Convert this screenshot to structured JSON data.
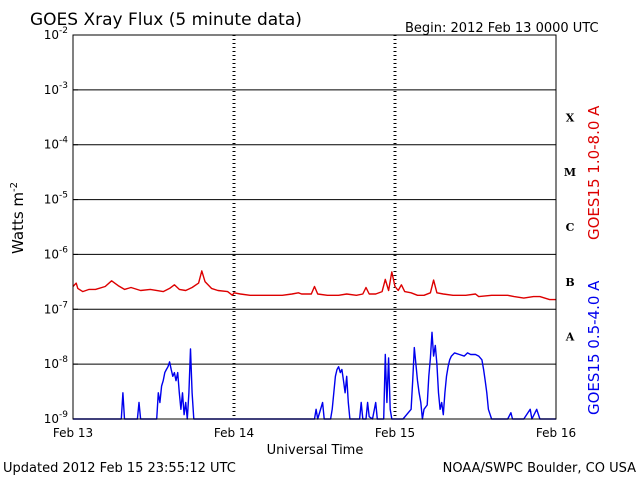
{
  "chart_data": {
    "type": "line",
    "title": "GOES Xray Flux (5 minute data)",
    "begin_label": "Begin:  2012 Feb 13 0000 UTC",
    "ylabel": "Watts m",
    "ylabel_exponent": "-2",
    "xlabel": "Universal Time",
    "y_scale": "log",
    "ylim": [
      1e-09,
      0.01
    ],
    "y_ticks": [
      {
        "value": 0.01,
        "mantissa": "10",
        "exponent": "-2"
      },
      {
        "value": 0.001,
        "mantissa": "10",
        "exponent": "-3"
      },
      {
        "value": 0.0001,
        "mantissa": "10",
        "exponent": "-4"
      },
      {
        "value": 1e-05,
        "mantissa": "10",
        "exponent": "-5"
      },
      {
        "value": 1e-06,
        "mantissa": "10",
        "exponent": "-6"
      },
      {
        "value": 1e-07,
        "mantissa": "10",
        "exponent": "-7"
      },
      {
        "value": 1e-08,
        "mantissa": "10",
        "exponent": "-8"
      },
      {
        "value": 1e-09,
        "mantissa": "10",
        "exponent": "-9"
      }
    ],
    "xlim_days": [
      0,
      3
    ],
    "x_tick_labels": [
      {
        "day": 0,
        "label": "Feb 13"
      },
      {
        "day": 1,
        "label": "Feb 14"
      },
      {
        "day": 2,
        "label": "Feb 15"
      },
      {
        "day": 3,
        "label": "Feb 16"
      }
    ],
    "flare_classes": [
      {
        "label": "X",
        "band": [
          0.0001,
          0.001
        ]
      },
      {
        "label": "M",
        "band": [
          1e-05,
          0.0001
        ]
      },
      {
        "label": "C",
        "band": [
          1e-06,
          1e-05
        ]
      },
      {
        "label": "B",
        "band": [
          1e-07,
          1e-06
        ]
      },
      {
        "label": "A",
        "band": [
          1e-08,
          1e-07
        ]
      }
    ],
    "grid": true,
    "series": [
      {
        "name": "GOES15 1.0-8.0 A",
        "color": "#dd0000",
        "points": [
          [
            0,
            2.6e-07
          ],
          [
            0.02,
            3e-07
          ],
          [
            0.03,
            2.4e-07
          ],
          [
            0.06,
            2.1e-07
          ],
          [
            0.1,
            2.3e-07
          ],
          [
            0.14,
            2.3e-07
          ],
          [
            0.2,
            2.6e-07
          ],
          [
            0.24,
            3.3e-07
          ],
          [
            0.28,
            2.7e-07
          ],
          [
            0.32,
            2.3e-07
          ],
          [
            0.36,
            2.5e-07
          ],
          [
            0.42,
            2.2e-07
          ],
          [
            0.48,
            2.3e-07
          ],
          [
            0.56,
            2.1e-07
          ],
          [
            0.6,
            2.4e-07
          ],
          [
            0.63,
            2.8e-07
          ],
          [
            0.66,
            2.3e-07
          ],
          [
            0.7,
            2.2e-07
          ],
          [
            0.74,
            2.5e-07
          ],
          [
            0.78,
            3e-07
          ],
          [
            0.8,
            5e-07
          ],
          [
            0.82,
            3.2e-07
          ],
          [
            0.86,
            2.4e-07
          ],
          [
            0.9,
            2.2e-07
          ],
          [
            0.96,
            2.1e-07
          ],
          [
            0.99,
            1.8e-07
          ],
          [
            1.0,
            2e-07
          ],
          [
            1.04,
            1.9e-07
          ],
          [
            1.1,
            1.8e-07
          ],
          [
            1.2,
            1.8e-07
          ],
          [
            1.3,
            1.8e-07
          ],
          [
            1.36,
            1.9e-07
          ],
          [
            1.4,
            2e-07
          ],
          [
            1.42,
            1.9e-07
          ],
          [
            1.48,
            1.9e-07
          ],
          [
            1.5,
            2.6e-07
          ],
          [
            1.52,
            1.9e-07
          ],
          [
            1.58,
            1.8e-07
          ],
          [
            1.65,
            1.8e-07
          ],
          [
            1.7,
            1.9e-07
          ],
          [
            1.76,
            1.8e-07
          ],
          [
            1.8,
            1.9e-07
          ],
          [
            1.82,
            2.5e-07
          ],
          [
            1.84,
            1.9e-07
          ],
          [
            1.88,
            1.9e-07
          ],
          [
            1.92,
            2.1e-07
          ],
          [
            1.94,
            3.5e-07
          ],
          [
            1.96,
            2.2e-07
          ],
          [
            1.98,
            4.8e-07
          ],
          [
            2.0,
            2.6e-07
          ],
          [
            2.02,
            2.2e-07
          ],
          [
            2.04,
            2.8e-07
          ],
          [
            2.06,
            2.1e-07
          ],
          [
            2.1,
            2e-07
          ],
          [
            2.14,
            1.8e-07
          ],
          [
            2.18,
            1.8e-07
          ],
          [
            2.22,
            2e-07
          ],
          [
            2.24,
            3.4e-07
          ],
          [
            2.26,
            2e-07
          ],
          [
            2.3,
            1.9e-07
          ],
          [
            2.36,
            1.8e-07
          ],
          [
            2.44,
            1.8e-07
          ],
          [
            2.5,
            1.9e-07
          ],
          [
            2.52,
            1.7e-07
          ],
          [
            2.6,
            1.8e-07
          ],
          [
            2.7,
            1.8e-07
          ],
          [
            2.74,
            1.7e-07
          ],
          [
            2.8,
            1.6e-07
          ],
          [
            2.86,
            1.7e-07
          ],
          [
            2.9,
            1.7e-07
          ],
          [
            2.96,
            1.5e-07
          ],
          [
            3.0,
            1.5e-07
          ]
        ]
      },
      {
        "name": "GOES15 0.5-4.0 A",
        "color": "#0000ee",
        "points": [
          [
            0,
            1e-09
          ],
          [
            0.3,
            1e-09
          ],
          [
            0.31,
            3e-09
          ],
          [
            0.32,
            1e-09
          ],
          [
            0.4,
            1e-09
          ],
          [
            0.41,
            2e-09
          ],
          [
            0.42,
            1e-09
          ],
          [
            0.52,
            1e-09
          ],
          [
            0.53,
            3e-09
          ],
          [
            0.54,
            2e-09
          ],
          [
            0.55,
            4e-09
          ],
          [
            0.56,
            5e-09
          ],
          [
            0.57,
            7e-09
          ],
          [
            0.58,
            8e-09
          ],
          [
            0.59,
            9e-09
          ],
          [
            0.6,
            1.1e-08
          ],
          [
            0.61,
            8e-09
          ],
          [
            0.62,
            6e-09
          ],
          [
            0.63,
            7e-09
          ],
          [
            0.64,
            5e-09
          ],
          [
            0.65,
            7e-09
          ],
          [
            0.66,
            3e-09
          ],
          [
            0.67,
            1.5e-09
          ],
          [
            0.68,
            3e-09
          ],
          [
            0.69,
            1.2e-09
          ],
          [
            0.7,
            2e-09
          ],
          [
            0.71,
            1e-09
          ],
          [
            0.72,
            3e-09
          ],
          [
            0.73,
            1.9e-08
          ],
          [
            0.74,
            3e-09
          ],
          [
            0.75,
            1e-09
          ],
          [
            1.5,
            1e-09
          ],
          [
            1.51,
            1.5e-09
          ],
          [
            1.52,
            1e-09
          ],
          [
            1.55,
            2e-09
          ],
          [
            1.56,
            1e-09
          ],
          [
            1.6,
            1e-09
          ],
          [
            1.61,
            1.5e-09
          ],
          [
            1.62,
            3e-09
          ],
          [
            1.63,
            6e-09
          ],
          [
            1.64,
            8e-09
          ],
          [
            1.65,
            9e-09
          ],
          [
            1.66,
            7e-09
          ],
          [
            1.67,
            8e-09
          ],
          [
            1.68,
            5e-09
          ],
          [
            1.69,
            3e-09
          ],
          [
            1.7,
            6e-09
          ],
          [
            1.71,
            2e-09
          ],
          [
            1.72,
            1e-09
          ],
          [
            1.78,
            1e-09
          ],
          [
            1.79,
            2e-09
          ],
          [
            1.8,
            1e-09
          ],
          [
            1.82,
            1e-09
          ],
          [
            1.83,
            2e-09
          ],
          [
            1.84,
            1.1e-09
          ],
          [
            1.86,
            1e-09
          ],
          [
            1.88,
            2e-09
          ],
          [
            1.89,
            1e-09
          ],
          [
            1.93,
            1e-09
          ],
          [
            1.94,
            1.5e-08
          ],
          [
            1.95,
            2e-09
          ],
          [
            1.96,
            1.3e-08
          ],
          [
            1.97,
            1.5e-09
          ],
          [
            1.98,
            1e-09
          ],
          [
            2.05,
            1e-09
          ],
          [
            2.1,
            1.5e-09
          ],
          [
            2.11,
            5e-09
          ],
          [
            2.12,
            2e-08
          ],
          [
            2.13,
            1e-08
          ],
          [
            2.14,
            5e-09
          ],
          [
            2.15,
            3e-09
          ],
          [
            2.16,
            2e-09
          ],
          [
            2.17,
            1e-09
          ],
          [
            2.18,
            1.5e-09
          ],
          [
            2.2,
            1.8e-09
          ],
          [
            2.21,
            6e-09
          ],
          [
            2.22,
            1.3e-08
          ],
          [
            2.23,
            3.8e-08
          ],
          [
            2.24,
            1.4e-08
          ],
          [
            2.25,
            2.2e-08
          ],
          [
            2.26,
            1e-08
          ],
          [
            2.27,
            3e-09
          ],
          [
            2.28,
            1.5e-09
          ],
          [
            2.29,
            2e-09
          ],
          [
            2.3,
            1.2e-09
          ],
          [
            2.31,
            3e-09
          ],
          [
            2.32,
            6e-09
          ],
          [
            2.33,
            9e-09
          ],
          [
            2.34,
            1.2e-08
          ],
          [
            2.35,
            1.4e-08
          ],
          [
            2.37,
            1.6e-08
          ],
          [
            2.4,
            1.5e-08
          ],
          [
            2.43,
            1.4e-08
          ],
          [
            2.45,
            1.6e-08
          ],
          [
            2.47,
            1.5e-08
          ],
          [
            2.5,
            1.5e-08
          ],
          [
            2.52,
            1.4e-08
          ],
          [
            2.54,
            1.2e-08
          ],
          [
            2.55,
            8e-09
          ],
          [
            2.56,
            5e-09
          ],
          [
            2.57,
            3e-09
          ],
          [
            2.58,
            1.5e-09
          ],
          [
            2.6,
            1e-09
          ],
          [
            2.7,
            1e-09
          ],
          [
            2.72,
            1.3e-09
          ],
          [
            2.73,
            1e-09
          ],
          [
            2.8,
            1e-09
          ],
          [
            2.84,
            1.5e-09
          ],
          [
            2.85,
            1e-09
          ],
          [
            2.88,
            1.5e-09
          ],
          [
            2.9,
            1e-09
          ],
          [
            3.0,
            1e-09
          ]
        ]
      }
    ]
  },
  "footer": {
    "updated": "Updated 2012 Feb 15 23:55:12 UTC",
    "credit": "NOAA/SWPC Boulder, CO USA"
  }
}
